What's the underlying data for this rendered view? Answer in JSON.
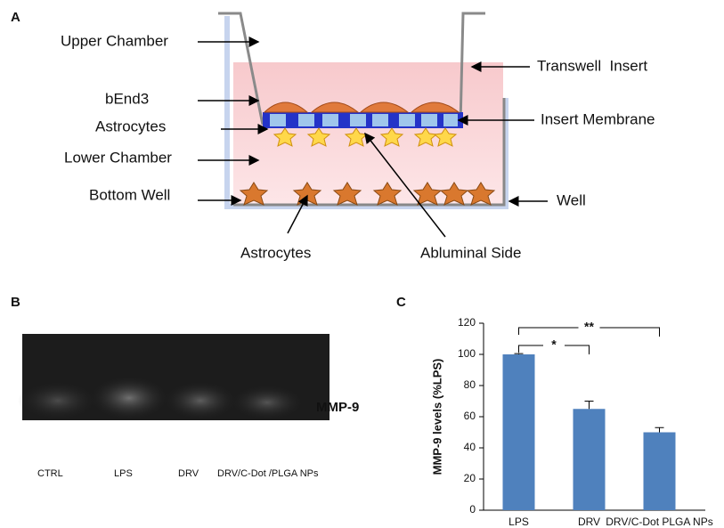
{
  "panels": {
    "a": "A",
    "b": "B",
    "c": "C"
  },
  "diagram": {
    "left_labels": [
      "Upper Chamber",
      "bEnd3",
      "Astrocytes",
      "Lower Chamber",
      "Bottom Well"
    ],
    "right_labels": [
      "Transwell  Insert",
      "Insert Membrane",
      "Well"
    ],
    "bottom_labels": [
      "Astrocytes",
      "Abluminal Side"
    ]
  },
  "gel": {
    "band_label": "MMP-9",
    "lanes": [
      "CTRL",
      "LPS",
      "DRV",
      "DRV/C-Dot /PLGA NPs"
    ]
  },
  "chart_data": {
    "type": "bar",
    "ylabel": "MMP-9 levels (%LPS)",
    "categories": [
      "LPS",
      "DRV",
      "DRV/C-Dot PLGA NPs"
    ],
    "values": [
      100,
      65,
      50
    ],
    "errors": [
      0.5,
      5,
      3
    ],
    "color": "#4f81bd",
    "ylim": [
      0,
      120
    ],
    "yticks": [
      0,
      20,
      40,
      60,
      80,
      100,
      120
    ],
    "annotations": [
      "*",
      "**"
    ]
  }
}
